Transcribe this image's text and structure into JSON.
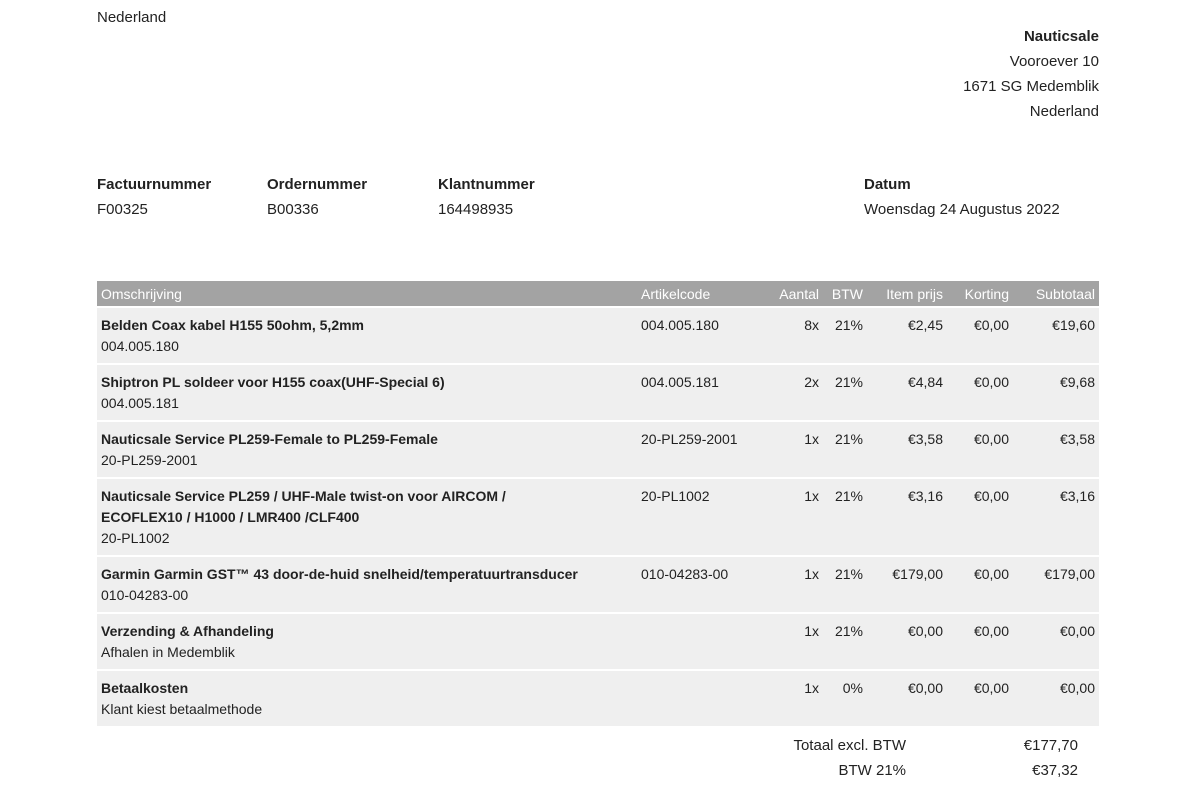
{
  "customer": {
    "country": "Nederland"
  },
  "seller": {
    "name": "Nauticsale",
    "street": "Vooroever 10",
    "city": "1671 SG Medemblik",
    "country": "Nederland"
  },
  "meta": [
    {
      "label": "Factuurnummer",
      "value": "F00325"
    },
    {
      "label": "Ordernummer",
      "value": "B00336"
    },
    {
      "label": "Klantnummer",
      "value": "164498935"
    },
    {
      "label": "Datum",
      "value": "Woensdag 24 Augustus 2022"
    }
  ],
  "table": {
    "headers": [
      "Omschrijving",
      "Artikelcode",
      "Aantal",
      "BTW",
      "Item prijs",
      "Korting",
      "Subtotaal"
    ],
    "rows": [
      {
        "description": [
          "Belden Coax kabel H155 50ohm, 5,2mm"
        ],
        "sub": "004.005.180",
        "cells": [
          "004.005.180",
          "8x",
          "21%",
          "€2,45",
          "€0,00",
          "€19,60"
        ]
      },
      {
        "description": [
          "Shiptron PL soldeer voor H155 coax(UHF-Special 6)"
        ],
        "sub": "004.005.181",
        "cells": [
          "004.005.181",
          "2x",
          "21%",
          "€4,84",
          "€0,00",
          "€9,68"
        ]
      },
      {
        "description": [
          "Nauticsale Service PL259-Female to PL259-Female"
        ],
        "sub": "20-PL259-2001",
        "cells": [
          "20-PL259-2001",
          "1x",
          "21%",
          "€3,58",
          "€0,00",
          "€3,58"
        ]
      },
      {
        "description": [
          "Nauticsale Service PL259 / UHF-Male twist-on voor AIRCOM /",
          "ECOFLEX10 / H1000 / LMR400 /CLF400"
        ],
        "sub": "20-PL1002",
        "cells": [
          "20-PL1002",
          "1x",
          "21%",
          "€3,16",
          "€0,00",
          "€3,16"
        ]
      },
      {
        "description": [
          "Garmin Garmin GST™ 43 door-de-huid snelheid/temperatuurtransducer"
        ],
        "sub": "010-04283-00",
        "cells": [
          "010-04283-00",
          "1x",
          "21%",
          "€179,00",
          "€0,00",
          "€179,00"
        ]
      },
      {
        "description": [
          "Verzending & Afhandeling"
        ],
        "sub": "Afhalen in Medemblik",
        "cells": [
          null,
          "1x",
          "21%",
          "€0,00",
          "€0,00",
          "€0,00"
        ]
      },
      {
        "description": [
          "Betaalkosten"
        ],
        "sub": "Klant kiest betaalmethode",
        "cells": [
          null,
          "1x",
          "0%",
          "€0,00",
          "€0,00",
          "€0,00"
        ]
      }
    ]
  },
  "totals": [
    {
      "label": "Totaal excl. BTW",
      "value": "€177,70"
    },
    {
      "label": "BTW 21%",
      "value": "€37,32"
    }
  ]
}
